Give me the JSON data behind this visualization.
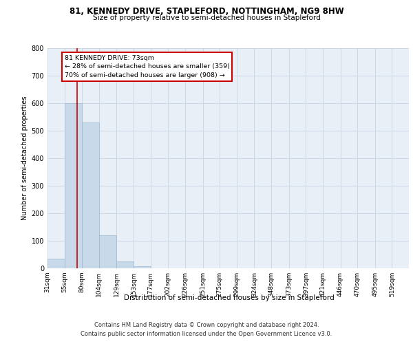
{
  "title": "81, KENNEDY DRIVE, STAPLEFORD, NOTTINGHAM, NG9 8HW",
  "subtitle": "Size of property relative to semi-detached houses in Stapleford",
  "xlabel": "Distribution of semi-detached houses by size in Stapleford",
  "ylabel": "Number of semi-detached properties",
  "bar_labels": [
    "31sqm",
    "55sqm",
    "80sqm",
    "104sqm",
    "129sqm",
    "153sqm",
    "177sqm",
    "202sqm",
    "226sqm",
    "251sqm",
    "275sqm",
    "299sqm",
    "324sqm",
    "348sqm",
    "373sqm",
    "397sqm",
    "421sqm",
    "446sqm",
    "470sqm",
    "495sqm",
    "519sqm"
  ],
  "bar_values": [
    36,
    600,
    530,
    120,
    25,
    8,
    0,
    0,
    0,
    0,
    0,
    0,
    0,
    0,
    0,
    0,
    0,
    0,
    0,
    0,
    0
  ],
  "bar_color": "#c8d9ea",
  "bar_edge_color": "#9ab8d0",
  "grid_color": "#ccd8e5",
  "background_color": "#e8eff6",
  "property_line_x": 73,
  "annotation_title": "81 KENNEDY DRIVE: 73sqm",
  "annotation_line1": "← 28% of semi-detached houses are smaller (359)",
  "annotation_line2": "70% of semi-detached houses are larger (908) →",
  "annotation_box_color": "#ffffff",
  "annotation_box_edge": "#cc0000",
  "vline_color": "#cc0000",
  "footer_line1": "Contains HM Land Registry data © Crown copyright and database right 2024.",
  "footer_line2": "Contains public sector information licensed under the Open Government Licence v3.0.",
  "ylim": [
    0,
    800
  ],
  "bin_edges": [
    31,
    55,
    80,
    104,
    129,
    153,
    177,
    202,
    226,
    251,
    275,
    299,
    324,
    348,
    373,
    397,
    421,
    446,
    470,
    495,
    519,
    543
  ]
}
